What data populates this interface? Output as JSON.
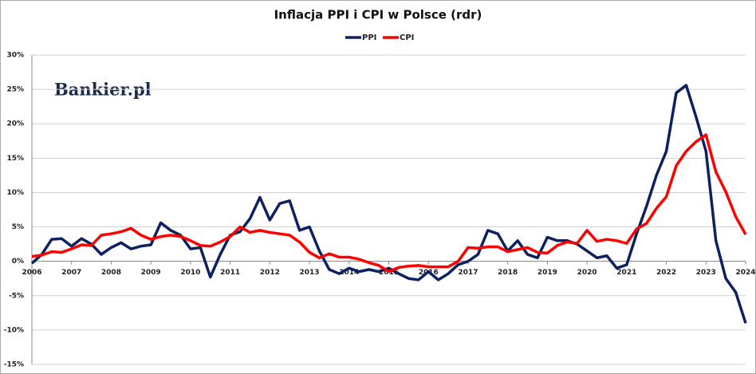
{
  "chart_data": {
    "type": "line",
    "title": "Inflacja PPI i CPI w Polsce (rdr)",
    "watermark": "Bankier.pl",
    "x": [
      2006,
      2006.25,
      2006.5,
      2006.75,
      2007,
      2007.25,
      2007.5,
      2007.75,
      2008,
      2008.25,
      2008.5,
      2008.75,
      2009,
      2009.25,
      2009.5,
      2009.75,
      2010,
      2010.25,
      2010.5,
      2010.75,
      2011,
      2011.25,
      2011.5,
      2011.75,
      2012,
      2012.25,
      2012.5,
      2012.75,
      2013,
      2013.25,
      2013.5,
      2013.75,
      2014,
      2014.25,
      2014.5,
      2014.75,
      2015,
      2015.25,
      2015.5,
      2015.75,
      2016,
      2016.25,
      2016.5,
      2016.75,
      2017,
      2017.25,
      2017.5,
      2017.75,
      2018,
      2018.25,
      2018.5,
      2018.75,
      2019,
      2019.25,
      2019.5,
      2019.75,
      2020,
      2020.25,
      2020.5,
      2020.75,
      2021,
      2021.25,
      2021.5,
      2021.75,
      2022,
      2022.25,
      2022.5,
      2022.75,
      2023,
      2023.25,
      2023.5,
      2023.75,
      2024
    ],
    "series": [
      {
        "name": "PPI",
        "color": "#0d2160",
        "values": [
          -0.3,
          1,
          3.2,
          3.3,
          2.2,
          3.3,
          2.5,
          1,
          2,
          2.7,
          1.8,
          2.2,
          2.4,
          5.6,
          4.5,
          3.8,
          1.8,
          2,
          -2.3,
          1,
          3.8,
          4.3,
          6.2,
          9.3,
          6,
          8.4,
          8.8,
          4.5,
          5,
          1.5,
          -1.2,
          -1.8,
          -1,
          -1.5,
          -1.2,
          -1.5,
          -1,
          -1.8,
          -2.5,
          -2.7,
          -1.5,
          -2.7,
          -1.8,
          -0.5,
          0,
          1,
          4.5,
          4,
          1.5,
          3,
          1,
          0.5,
          3.5,
          3,
          3,
          2.5,
          1.5,
          0.5,
          0.8,
          -1,
          -0.5,
          4,
          8,
          12.5,
          16,
          24.5,
          25.6,
          21,
          16,
          3,
          -2.5,
          -4.5,
          -9
        ]
      },
      {
        "name": "CPI",
        "color": "#ff0000",
        "values": [
          0.7,
          0.9,
          1.4,
          1.3,
          1.8,
          2.4,
          2.3,
          3.8,
          4,
          4.3,
          4.8,
          3.8,
          3.2,
          3.6,
          3.8,
          3.6,
          3,
          2.3,
          2.2,
          2.8,
          3.6,
          5,
          4.2,
          4.5,
          4.2,
          4,
          3.8,
          2.8,
          1.3,
          0.5,
          1.1,
          0.6,
          0.6,
          0.3,
          -0.2,
          -0.6,
          -1.5,
          -0.9,
          -0.7,
          -0.6,
          -0.8,
          -0.8,
          -0.8,
          0,
          2,
          1.9,
          2.1,
          2.1,
          1.4,
          1.7,
          2,
          1.3,
          1.2,
          2.3,
          2.8,
          2.6,
          4.5,
          2.9,
          3.2,
          3,
          2.6,
          4.7,
          5.5,
          7.7,
          9.4,
          13.9,
          16,
          17.4,
          18.4,
          13,
          10.1,
          6.5,
          3.9
        ]
      }
    ],
    "xlim": [
      2006,
      2024
    ],
    "xticks": [
      2006,
      2007,
      2008,
      2009,
      2010,
      2011,
      2012,
      2013,
      2014,
      2015,
      2016,
      2017,
      2018,
      2019,
      2020,
      2021,
      2022,
      2023,
      2024
    ],
    "ylim": [
      -15,
      30
    ],
    "yticks": [
      {
        "value": -15,
        "label": "-15%"
      },
      {
        "value": -10,
        "label": "-10%"
      },
      {
        "value": -5,
        "label": "-5%"
      },
      {
        "value": 0,
        "label": "0%"
      },
      {
        "value": 5,
        "label": "5%"
      },
      {
        "value": 10,
        "label": "10%"
      },
      {
        "value": 15,
        "label": "15%"
      },
      {
        "value": 20,
        "label": "20%"
      },
      {
        "value": 25,
        "label": "25%"
      },
      {
        "value": 30,
        "label": "30%"
      }
    ],
    "grid": true
  }
}
